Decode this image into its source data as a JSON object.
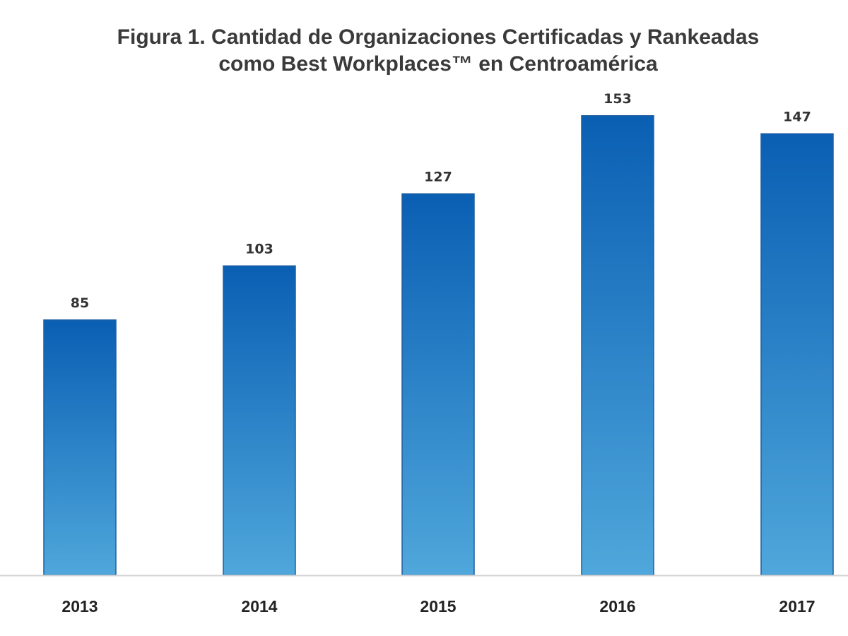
{
  "chart_data": {
    "type": "bar",
    "title": "Figura 1. Cantidad de Organizaciones Certificadas y Rankeadas",
    "subtitle": "como Best Workplaces™ en Centroamérica",
    "categories": [
      "2013",
      "2014",
      "2015",
      "2016",
      "2017"
    ],
    "values": [
      85,
      103,
      127,
      153,
      147
    ],
    "xlabel": "",
    "ylabel": "",
    "ylim": [
      0,
      160
    ],
    "grid": false,
    "legend": "none",
    "data_labels": true,
    "colors": {
      "bar_top": "#0a5fb3",
      "bar_bottom": "#4fa7db",
      "bar_border": "#1f5fa0",
      "axis": "#d4d4d4"
    }
  }
}
